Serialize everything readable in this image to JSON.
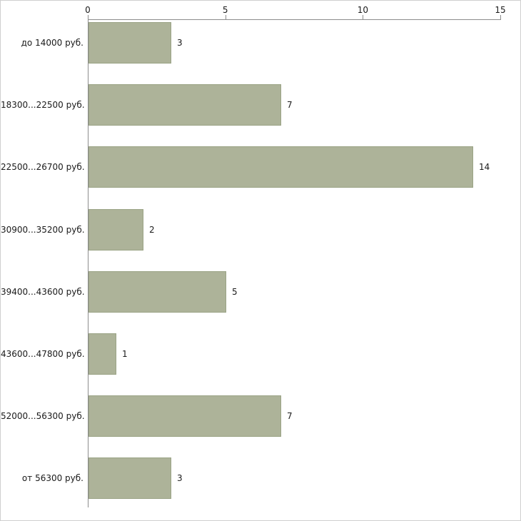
{
  "chart_data": {
    "type": "bar",
    "orientation": "horizontal",
    "title": "",
    "xlabel": "",
    "ylabel": "",
    "categories": [
      "до 14000 руб.",
      "18300...22500 руб.",
      "22500...26700 руб.",
      "30900...35200 руб.",
      "39400...43600 руб.",
      "43600...47800 руб.",
      "52000...56300 руб.",
      "от 56300 руб."
    ],
    "values": [
      3,
      7,
      14,
      2,
      5,
      1,
      7,
      3
    ],
    "value_labels": [
      "3",
      "7",
      "14",
      "2",
      "5",
      "1",
      "7",
      "3"
    ],
    "xlim": [
      0,
      15
    ],
    "x_ticks": [
      0,
      5,
      10,
      15
    ],
    "x_tick_labels": [
      "0",
      "5",
      "10",
      "15"
    ],
    "grid": false,
    "legend": false,
    "axis_position": "top",
    "colors": {
      "bar_fill": "#adb399",
      "bar_border": "#9aa385",
      "axis": "#8c8c8c",
      "text": "#1a1a1a",
      "background": "#ffffff"
    }
  }
}
